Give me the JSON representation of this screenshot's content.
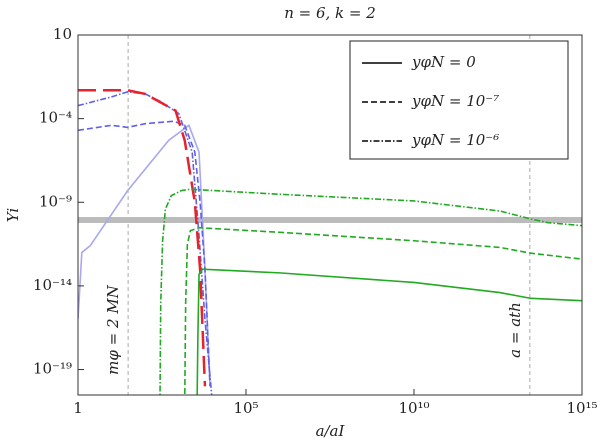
{
  "chart_data": {
    "type": "line",
    "title": "n = 6, k = 2",
    "x_label": "a/aI",
    "y_label": "Yi",
    "log_x": true,
    "log_y": true,
    "xlim": [
      1,
      1000000000000000.0
    ],
    "ylim": [
      3e-21,
      10
    ],
    "xticks": [
      1,
      {
        "value": 100000,
        "label": "10⁵"
      },
      {
        "value": 10000000000.0,
        "label": "10¹⁰"
      },
      {
        "value": 1000000000000000.0,
        "label": "10¹⁵"
      }
    ],
    "yticks": [
      10,
      {
        "value": 0.0001,
        "label": "10⁻⁴"
      },
      {
        "value": 1e-09,
        "label": "10⁻⁹"
      },
      {
        "value": 1e-14,
        "label": "10⁻¹⁴"
      },
      {
        "value": 1e-19,
        "label": "10⁻¹⁹"
      }
    ],
    "vlines": [
      {
        "value": 31,
        "label": "mφ = 2 MN",
        "color": "#aaaaaa"
      },
      {
        "value": 28000000000000.0,
        "label": "a = ath",
        "color": "#aaaaaa"
      }
    ],
    "hline": {
      "value": 8.7e-11,
      "color": "#bbbbbb"
    },
    "legend_position": "upper right",
    "legend": [
      {
        "label": "yφN = 0",
        "dash": "solid"
      },
      {
        "label": "yφN = 10⁻⁷",
        "dash": "dashed"
      },
      {
        "label": "yφN = 10⁻⁶",
        "dash": "dashdot"
      }
    ],
    "series": [
      {
        "color": "#a8a8f0",
        "dash": "solid",
        "x": [
          1,
          1.3,
          2.3,
          30,
          500,
          2000,
          4000,
          6000,
          8500
        ],
        "values": [
          1e-16,
          1e-12,
          2.5e-12,
          5e-09,
          5e-06,
          4e-05,
          1e-06,
          1e-13,
          1e-20
        ]
      },
      {
        "color": "#6060e8",
        "dash": "dashed",
        "x": [
          1,
          10,
          30,
          100,
          700,
          1500,
          3000,
          4300,
          6000,
          8500
        ],
        "values": [
          2e-05,
          4e-05,
          3e-05,
          5e-05,
          7e-05,
          4e-05,
          1e-06,
          1e-09,
          1e-13,
          1e-20
        ]
      },
      {
        "color": "#6060e8",
        "dash": "dashdot",
        "x": [
          1,
          10,
          30,
          100,
          300,
          1000,
          2500,
          4000,
          6000,
          10000
        ],
        "values": [
          0.0006,
          0.002,
          0.004,
          0.003,
          0.001,
          0.0002,
          1e-06,
          1e-11,
          1e-16,
          1e-21
        ]
      },
      {
        "color": "#e8222a",
        "dash": "longdash",
        "x": [
          1,
          30,
          100,
          800,
          1500,
          3000,
          4300,
          6000
        ],
        "values": [
          0.005,
          0.005,
          0.003,
          0.0003,
          5e-06,
          1e-09,
          1e-13,
          1e-20
        ]
      },
      {
        "color": "#22aa22",
        "dash": "solid",
        "x": [
          3500,
          3700,
          4000,
          5000,
          1000000,
          10000000000.0,
          3600000000000.0,
          30000000000000.0,
          1000000000000000.0
        ],
        "values": [
          1e-21,
          1e-17,
          5e-14,
          1e-13,
          6e-14,
          1.6e-14,
          4e-15,
          1.8e-15,
          1.3e-15
        ]
      },
      {
        "color": "#22aa22",
        "dash": "dashed",
        "x": [
          1500,
          1600,
          1800,
          2200,
          4000,
          1000000,
          10000000000.0,
          3600000000000.0,
          30000000000000.0,
          1000000000000000.0
        ],
        "values": [
          1e-21,
          1e-15,
          3e-12,
          2e-11,
          3e-11,
          1.6e-11,
          5e-12,
          2e-12,
          9e-13,
          4e-13
        ]
      },
      {
        "color": "#22aa22",
        "dash": "dashdot",
        "x": [
          275,
          290,
          330,
          400,
          600,
          1200,
          2200,
          1000000,
          10000000000.0,
          3600000000000.0,
          30000000000000.0,
          100000000000000.0,
          1000000000000000.0
        ],
        "values": [
          1e-21,
          1e-15,
          5e-12,
          4e-10,
          2.5e-09,
          5e-09,
          6e-09,
          3e-09,
          1.2e-09,
          3e-10,
          1e-10,
          6e-11,
          4e-11
        ]
      }
    ]
  }
}
